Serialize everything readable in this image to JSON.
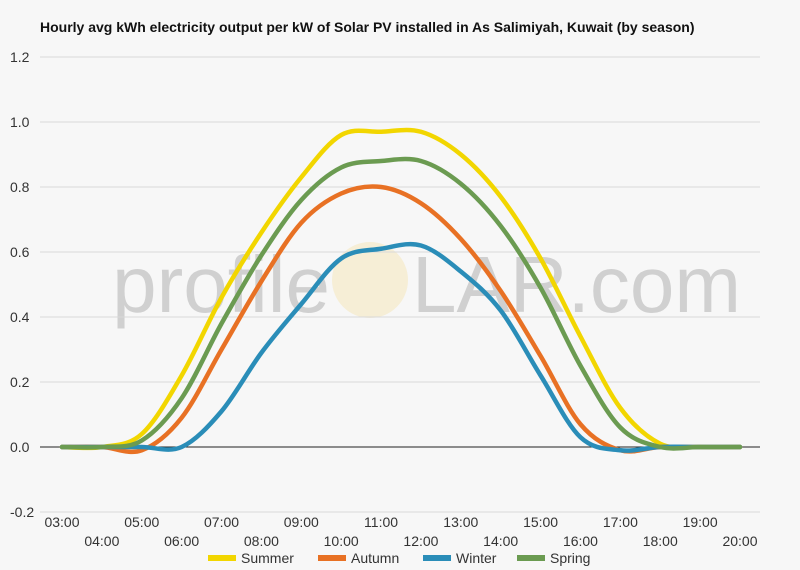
{
  "chart_data": {
    "type": "line",
    "title": "Hourly avg kWh electricity output per kW of Solar PV installed in As Salimiyah, Kuwait (by season)",
    "xlabel": "",
    "ylabel": "",
    "ylim": [
      -0.2,
      1.2
    ],
    "yticks": [
      "-0.2",
      "0.0",
      "0.2",
      "0.4",
      "0.6",
      "0.8",
      "1.0",
      "1.2"
    ],
    "x": [
      "03:00",
      "04:00",
      "05:00",
      "06:00",
      "07:00",
      "08:00",
      "09:00",
      "10:00",
      "11:00",
      "12:00",
      "13:00",
      "14:00",
      "15:00",
      "16:00",
      "17:00",
      "18:00",
      "19:00",
      "20:00"
    ],
    "grid": true,
    "legend": "bottom",
    "series": [
      {
        "name": "Summer",
        "color": "#f2d600",
        "values": [
          0.0,
          0.0,
          0.04,
          0.22,
          0.46,
          0.66,
          0.83,
          0.96,
          0.97,
          0.97,
          0.9,
          0.77,
          0.58,
          0.34,
          0.12,
          0.01,
          0.0,
          0.0
        ]
      },
      {
        "name": "Autumn",
        "color": "#e87124",
        "values": [
          0.0,
          0.0,
          -0.01,
          0.09,
          0.3,
          0.51,
          0.69,
          0.78,
          0.8,
          0.75,
          0.64,
          0.48,
          0.28,
          0.07,
          -0.01,
          0.0,
          0.0,
          0.0
        ]
      },
      {
        "name": "Winter",
        "color": "#2a8db8",
        "values": [
          0.0,
          0.0,
          0.0,
          0.0,
          0.11,
          0.29,
          0.44,
          0.58,
          0.61,
          0.62,
          0.54,
          0.42,
          0.22,
          0.03,
          -0.01,
          0.0,
          0.0,
          0.0
        ]
      },
      {
        "name": "Spring",
        "color": "#6b9b51",
        "values": [
          0.0,
          0.0,
          0.02,
          0.15,
          0.38,
          0.59,
          0.76,
          0.86,
          0.88,
          0.88,
          0.81,
          0.68,
          0.49,
          0.25,
          0.06,
          0.0,
          0.0,
          0.0
        ]
      }
    ]
  },
  "watermark": {
    "left": "profile",
    "right": "LAR.com",
    "sun_color": "#f5c542"
  }
}
